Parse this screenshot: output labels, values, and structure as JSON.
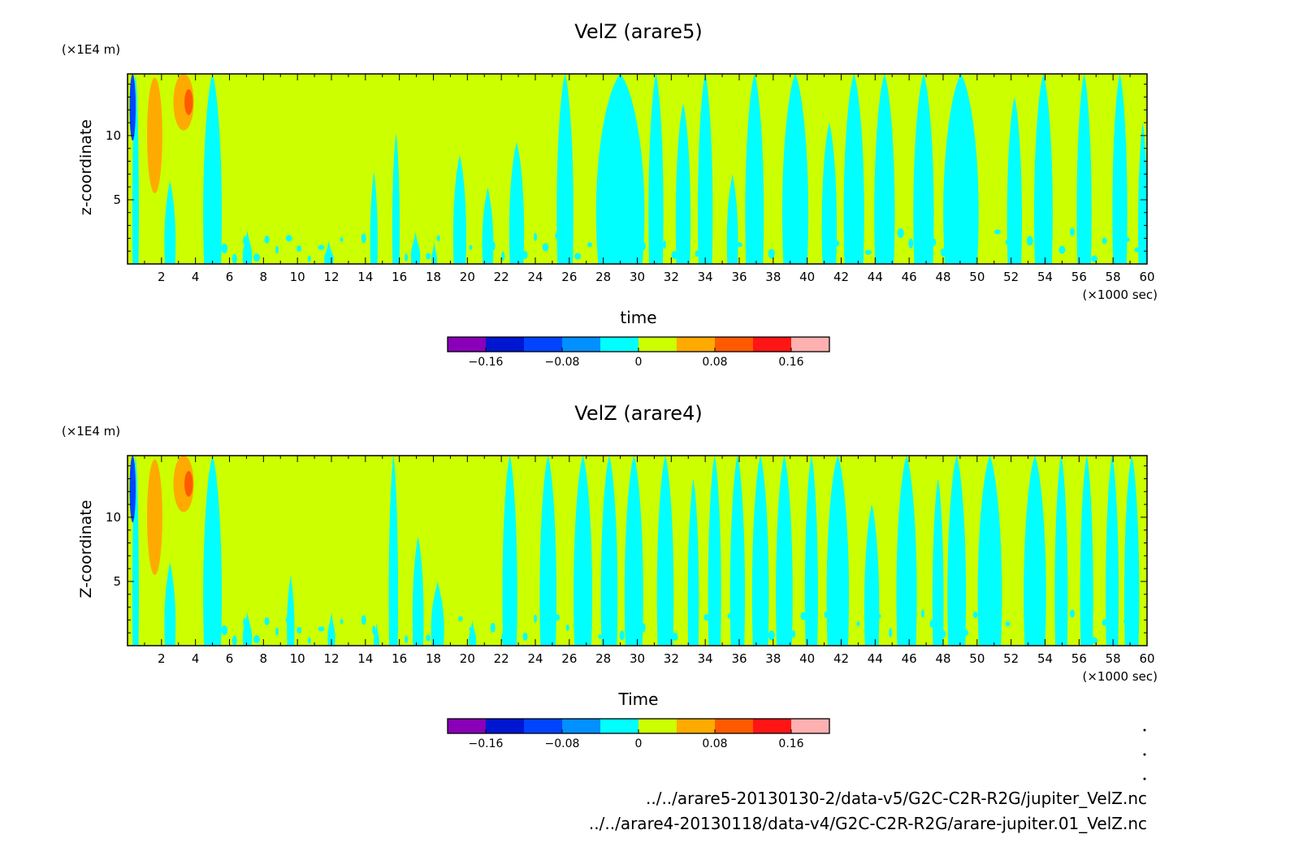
{
  "chart_data": [
    {
      "type": "heatmap",
      "title": "VelZ (arare5)",
      "xlabel": "time",
      "ylabel": "z-coordinate",
      "x_unit": "(×1000 sec)",
      "y_unit": "(×1E4 m)",
      "xlim": [
        0,
        60
      ],
      "ylim": [
        0,
        14.8
      ],
      "x_ticks": [
        2,
        4,
        6,
        8,
        10,
        12,
        14,
        16,
        18,
        20,
        22,
        24,
        26,
        28,
        30,
        32,
        34,
        36,
        38,
        40,
        42,
        44,
        46,
        48,
        50,
        52,
        54,
        56,
        58,
        60
      ],
      "y_ticks": [
        5,
        10
      ],
      "cyan_bands": [
        [
          0.3,
          0.65,
          14.8
        ],
        [
          2.2,
          2.8,
          6.5
        ],
        [
          4.5,
          5.5,
          14.8
        ],
        [
          6.8,
          7.3,
          2.6
        ],
        [
          11.6,
          12.1,
          1.8
        ],
        [
          14.3,
          14.7,
          7.2
        ],
        [
          15.6,
          16.0,
          10.2
        ],
        [
          16.7,
          17.2,
          2.5
        ],
        [
          17.9,
          18.2,
          1.8
        ],
        [
          19.2,
          19.9,
          8.5
        ],
        [
          20.9,
          21.5,
          6.0
        ],
        [
          22.5,
          23.3,
          9.5
        ],
        [
          25.3,
          26.2,
          14.8
        ],
        [
          27.7,
          30.3,
          14.8
        ],
        [
          30.7,
          31.5,
          14.8
        ],
        [
          32.3,
          33.1,
          12.5
        ],
        [
          33.6,
          34.4,
          14.8
        ],
        [
          35.3,
          35.9,
          7.0
        ],
        [
          36.4,
          37.4,
          14.8
        ],
        [
          38.6,
          40.0,
          14.8
        ],
        [
          40.9,
          41.7,
          11.0
        ],
        [
          42.2,
          43.3,
          14.8
        ],
        [
          44.0,
          45.1,
          14.8
        ],
        [
          46.3,
          47.4,
          14.8
        ],
        [
          48.1,
          50.0,
          14.8
        ],
        [
          51.8,
          52.6,
          13.0
        ],
        [
          53.4,
          54.4,
          14.8
        ],
        [
          55.9,
          56.7,
          14.8
        ],
        [
          58.0,
          58.8,
          14.8
        ],
        [
          59.5,
          60.0,
          11.0
        ]
      ],
      "positive_cells": [
        {
          "x": 1.6,
          "z": 10.0,
          "rx": 0.45,
          "rz": 4.5,
          "level": 0.06
        },
        {
          "x": 3.3,
          "z": 12.6,
          "rx": 0.6,
          "rz": 2.2,
          "level": 0.06
        },
        {
          "x": 3.6,
          "z": 12.6,
          "rx": 0.25,
          "rz": 1.0,
          "level": 0.1
        }
      ],
      "negative_cells": [
        {
          "x": 0.3,
          "z": 12.2,
          "rx": 0.18,
          "rz": 2.6,
          "level": -0.1
        }
      ]
    },
    {
      "type": "heatmap",
      "title": "VelZ (arare4)",
      "xlabel": "Time",
      "ylabel": "Z-coordinate",
      "x_unit": "(×1000 sec)",
      "y_unit": "(×1E4 m)",
      "xlim": [
        0,
        60
      ],
      "ylim": [
        0,
        14.8
      ],
      "x_ticks": [
        2,
        4,
        6,
        8,
        10,
        12,
        14,
        16,
        18,
        20,
        22,
        24,
        26,
        28,
        30,
        32,
        34,
        36,
        38,
        40,
        42,
        44,
        46,
        48,
        50,
        52,
        54,
        56,
        58,
        60
      ],
      "y_ticks": [
        5,
        10
      ],
      "cyan_bands": [
        [
          0.3,
          0.65,
          14.8
        ],
        [
          2.2,
          2.8,
          6.5
        ],
        [
          4.5,
          5.5,
          14.8
        ],
        [
          6.8,
          7.3,
          2.6
        ],
        [
          9.4,
          9.8,
          5.5
        ],
        [
          11.8,
          12.2,
          2.6
        ],
        [
          14.5,
          14.8,
          1.8
        ],
        [
          15.4,
          15.9,
          14.8
        ],
        [
          16.8,
          17.4,
          8.5
        ],
        [
          17.9,
          18.6,
          5.0
        ],
        [
          20.1,
          20.5,
          2.0
        ],
        [
          22.1,
          22.9,
          14.8
        ],
        [
          24.3,
          25.2,
          14.8
        ],
        [
          26.3,
          27.3,
          14.8
        ],
        [
          27.9,
          28.8,
          14.8
        ],
        [
          29.3,
          30.3,
          14.8
        ],
        [
          31.2,
          32.1,
          14.8
        ],
        [
          33.0,
          33.6,
          13.0
        ],
        [
          34.2,
          34.9,
          14.8
        ],
        [
          35.5,
          36.3,
          14.8
        ],
        [
          36.8,
          37.7,
          14.8
        ],
        [
          38.2,
          39.1,
          14.8
        ],
        [
          39.9,
          40.6,
          14.8
        ],
        [
          41.2,
          42.4,
          14.8
        ],
        [
          43.4,
          44.2,
          11.0
        ],
        [
          45.3,
          46.4,
          14.8
        ],
        [
          47.4,
          48.0,
          13.0
        ],
        [
          48.3,
          49.3,
          14.8
        ],
        [
          50.1,
          51.4,
          14.8
        ],
        [
          52.8,
          54.0,
          14.8
        ],
        [
          54.6,
          55.3,
          14.8
        ],
        [
          56.1,
          56.8,
          14.8
        ],
        [
          57.6,
          58.3,
          14.8
        ],
        [
          58.7,
          59.5,
          14.8
        ]
      ],
      "positive_cells": [
        {
          "x": 1.6,
          "z": 10.0,
          "rx": 0.45,
          "rz": 4.5,
          "level": 0.06
        },
        {
          "x": 3.3,
          "z": 12.6,
          "rx": 0.6,
          "rz": 2.2,
          "level": 0.06
        },
        {
          "x": 3.6,
          "z": 12.6,
          "rx": 0.25,
          "rz": 1.0,
          "level": 0.1
        }
      ],
      "negative_cells": [
        {
          "x": 0.3,
          "z": 12.2,
          "rx": 0.18,
          "rz": 2.6,
          "level": -0.1
        }
      ]
    }
  ],
  "colorbar": {
    "levels": [
      -0.2,
      -0.16,
      -0.12,
      -0.08,
      -0.04,
      0,
      0.04,
      0.08,
      0.12,
      0.16,
      0.2
    ],
    "labels": [
      "-0.16",
      "-0.08",
      "0",
      "0.08",
      "0.16"
    ],
    "label_values": [
      -0.16,
      -0.08,
      0,
      0.08,
      0.16
    ],
    "colors": [
      "#8a00b8",
      "#0016d0",
      "#0044ff",
      "#0090ff",
      "#00ffff",
      "#ccff00",
      "#ffaa00",
      "#ff5a00",
      "#ff1515",
      "#ffb0b0"
    ]
  },
  "footer": {
    "file_1": "../../arare5-20130130-2/data-v5/G2C-C2R-R2G/jupiter_VelZ.nc",
    "file_2": "../../arare4-20130118/data-v4/G2C-C2R-R2G/arare-jupiter.01_VelZ.nc"
  }
}
